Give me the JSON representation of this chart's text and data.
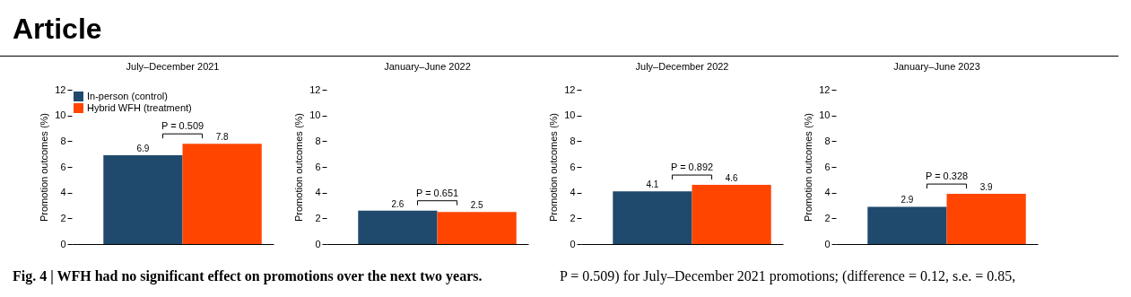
{
  "chart_data": [
    {
      "type": "other",
      "annotations": [
        "Article"
      ]
    },
    {
      "type": "bar",
      "title": "July–December 2021",
      "ylabel": "Promotion outcomes (%)",
      "categories": [
        null
      ],
      "series": [
        {
          "name": "In-person (control)",
          "color": "#1f4a6e",
          "values": [
            6.9
          ]
        },
        {
          "name": "Hybrid WFH (treatment)",
          "color": "#ff4500",
          "values": [
            7.8
          ]
        }
      ],
      "ylim": [
        0,
        12
      ],
      "yticks": [
        0,
        2,
        4,
        6,
        8,
        10,
        12
      ],
      "data_labels": true,
      "legend": "top left",
      "tick_labels": "y",
      "annotations": [
        "P = 0.509"
      ]
    },
    {
      "type": "bar",
      "title": "January–June 2022",
      "ylabel": "Promotion outcomes (%)",
      "categories": [
        null
      ],
      "series": [
        {
          "color": "#1f4a6e",
          "values": [
            2.6
          ]
        },
        {
          "color": "#ff4500",
          "values": [
            2.5
          ]
        }
      ],
      "ylim": [
        0,
        12
      ],
      "yticks": [
        0,
        2,
        4,
        6,
        8,
        10,
        12
      ],
      "data_labels": true,
      "tick_labels": "y",
      "annotations": [
        "P = 0.651"
      ]
    },
    {
      "type": "bar",
      "title": "July–December 2022",
      "ylabel": "Promotion outcomes (%)",
      "categories": [
        null
      ],
      "series": [
        {
          "color": "#1f4a6e",
          "values": [
            4.1
          ]
        },
        {
          "color": "#ff4500",
          "values": [
            4.6
          ]
        }
      ],
      "ylim": [
        0,
        12
      ],
      "yticks": [
        0,
        2,
        4,
        6,
        8,
        10,
        12
      ],
      "data_labels": true,
      "tick_labels": "y",
      "annotations": [
        "P = 0.892"
      ]
    },
    {
      "type": "bar",
      "title": "January–June 2023",
      "ylabel": "Promotion outcomes (%)",
      "categories": [
        null
      ],
      "series": [
        {
          "color": "#1f4a6e",
          "values": [
            2.9
          ]
        },
        {
          "color": "#ff4500",
          "values": [
            3.9
          ]
        }
      ],
      "ylim": [
        0,
        12
      ],
      "yticks": [
        0,
        2,
        4,
        6,
        8,
        10,
        12
      ],
      "data_labels": true,
      "tick_labels": "y",
      "annotations": [
        "P = 0.328"
      ]
    },
    {
      "type": "other",
      "annotations": [
        "Fig. 4 | WFH had no significant effect on promotions over the next two years.",
        "P = 0.509) for July–December 2021 promotions; (difference = 0.12, s.e. = 0.85,"
      ]
    }
  ]
}
